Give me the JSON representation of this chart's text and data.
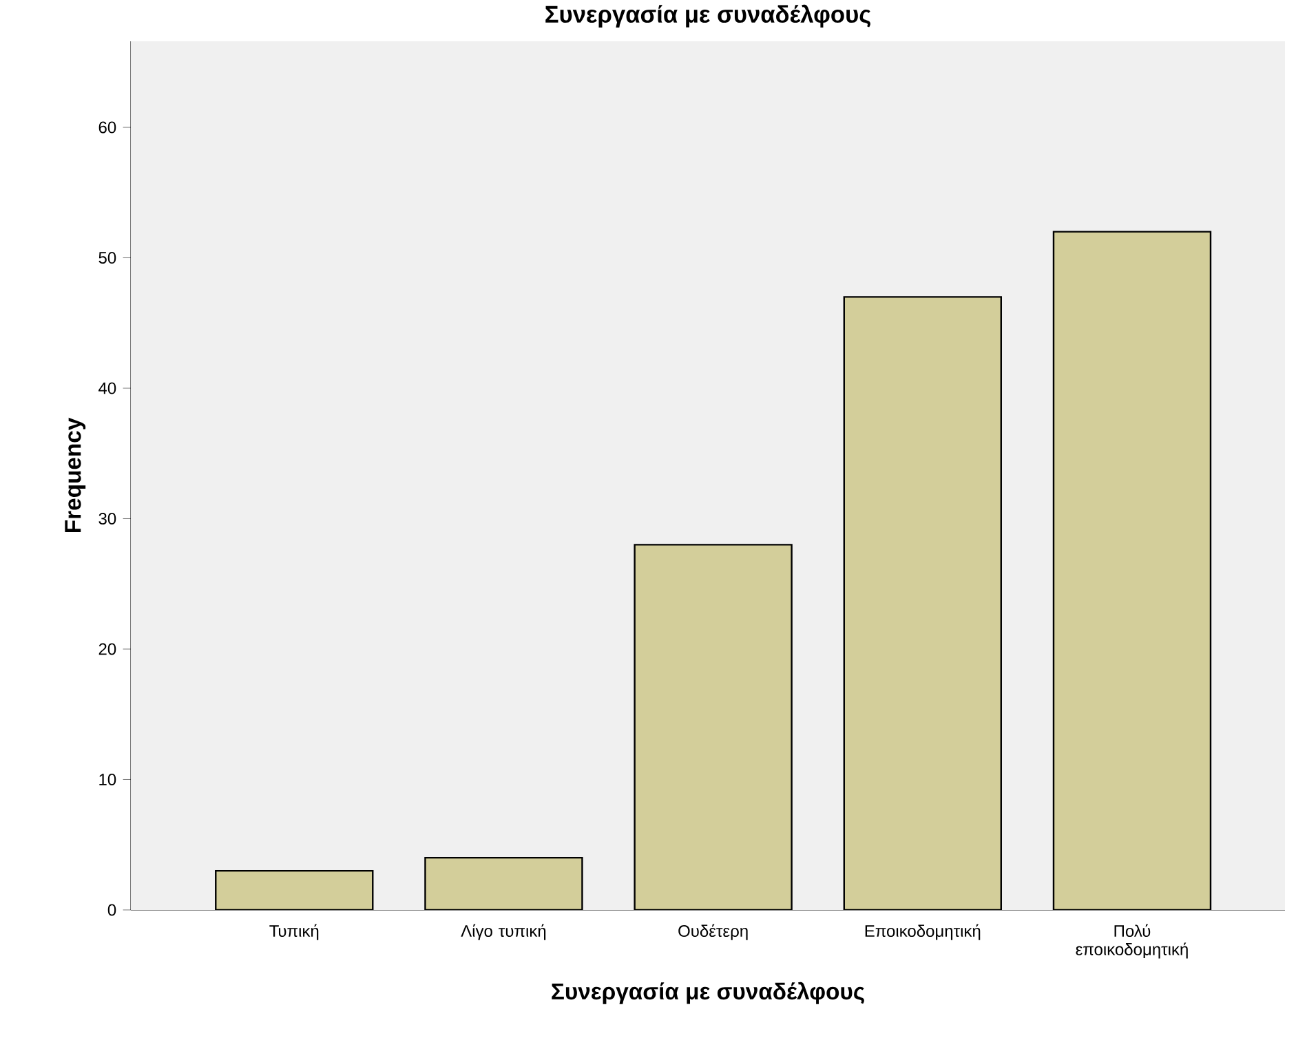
{
  "chart_data": {
    "type": "bar",
    "title": "Συνεργασία με συναδέλφους",
    "xlabel": "Συνεργασία με συναδέλφους",
    "ylabel": "Frequency",
    "categories": [
      "Τυπική",
      "Λίγο τυπική",
      "Ουδέτερη",
      "Εποικοδομητική",
      "Πολύ εποικοδομητική"
    ],
    "values": [
      3,
      4,
      28,
      47,
      52
    ],
    "color": "#d3ce9a",
    "ylim": [
      0,
      66.6
    ],
    "yticks": [
      0,
      10,
      20,
      30,
      40,
      50,
      60
    ],
    "grid": false
  }
}
